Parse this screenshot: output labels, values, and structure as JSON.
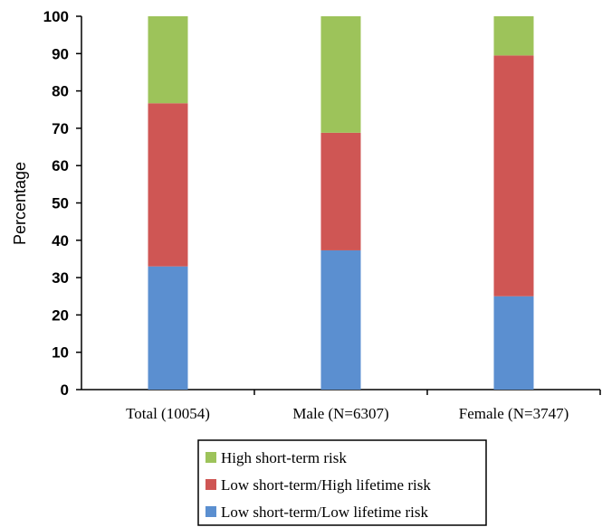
{
  "chart_data": {
    "type": "bar",
    "stacked": true,
    "title": "",
    "xlabel": "",
    "ylabel": "Percentage",
    "ylim": [
      0,
      100
    ],
    "yticks": [
      0,
      10,
      20,
      30,
      40,
      50,
      60,
      70,
      80,
      90,
      100
    ],
    "categories": [
      "Total (10054)",
      "Male (N=6307)",
      "Female (N=3747)"
    ],
    "series": [
      {
        "name": "Low short-term/Low lifetime risk",
        "color": "#5b8fd0",
        "values": [
          33,
          37.3,
          25
        ]
      },
      {
        "name": "Low short-term/High lifetime risk",
        "color": "#cf5654",
        "values": [
          43.7,
          31.5,
          64.5
        ]
      },
      {
        "name": "High short-term risk",
        "color": "#9dc35a",
        "values": [
          23.3,
          31.2,
          10.5
        ]
      }
    ],
    "legend": {
      "position": "bottom",
      "order": [
        "High short-term risk",
        "Low short-term/High lifetime risk",
        "Low short-term/Low lifetime risk"
      ]
    },
    "grid": false
  }
}
